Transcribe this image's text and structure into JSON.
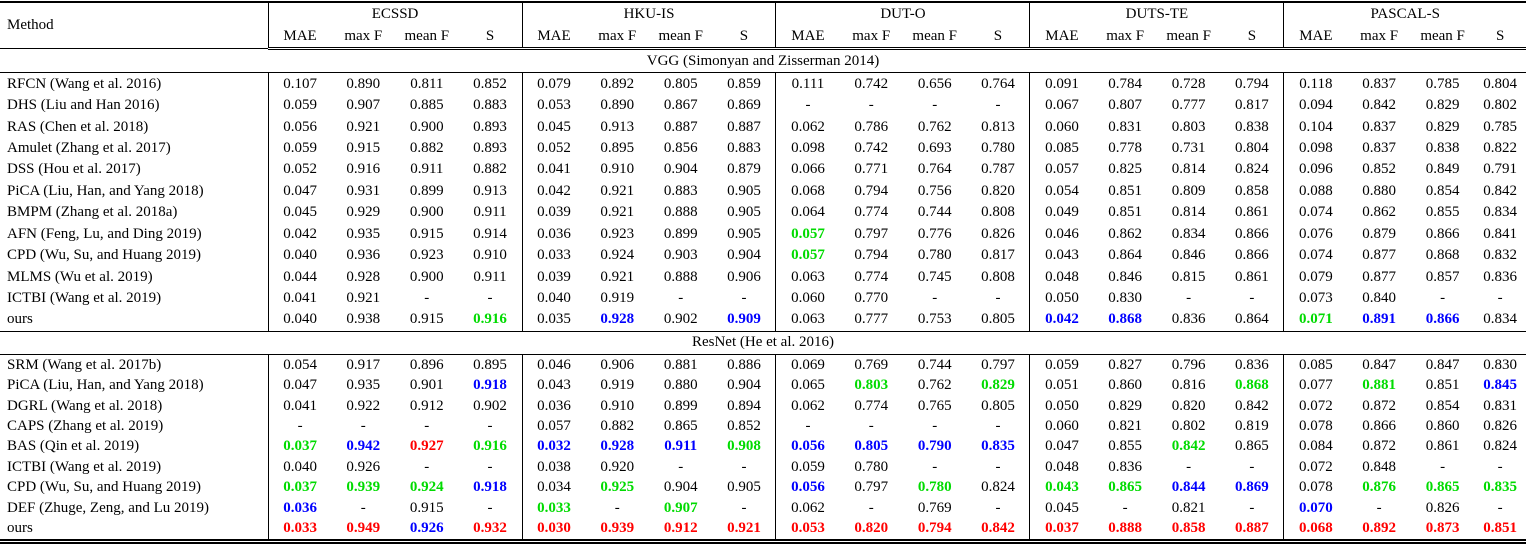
{
  "header": {
    "method_label": "Method",
    "datasets": [
      "ECSSD",
      "HKU-IS",
      "DUT-O",
      "DUTS-TE",
      "PASCAL-S"
    ],
    "metrics": [
      "MAE",
      "max F",
      "mean F",
      "S"
    ]
  },
  "color_map": {
    "r": "#ff0000",
    "g": "#00db00",
    "b": "#0000ff",
    "k": "#000000"
  },
  "sections": [
    {
      "id": "vgg",
      "title": "VGG (Simonyan and Zisserman 2014)",
      "rows": [
        {
          "method": "RFCN (Wang et al. 2016)",
          "cells": [
            "0.107",
            "0.890",
            "0.811",
            "0.852",
            "0.079",
            "0.892",
            "0.805",
            "0.859",
            "0.111",
            "0.742",
            "0.656",
            "0.764",
            "0.091",
            "0.784",
            "0.728",
            "0.794",
            "0.118",
            "0.837",
            "0.785",
            "0.804"
          ]
        },
        {
          "method": "DHS (Liu and Han 2016)",
          "cells": [
            "0.059",
            "0.907",
            "0.885",
            "0.883",
            "0.053",
            "0.890",
            "0.867",
            "0.869",
            "-",
            "-",
            "-",
            "-",
            "0.067",
            "0.807",
            "0.777",
            "0.817",
            "0.094",
            "0.842",
            "0.829",
            "0.802"
          ]
        },
        {
          "method": "RAS (Chen et al. 2018)",
          "cells": [
            "0.056",
            "0.921",
            "0.900",
            "0.893",
            "0.045",
            "0.913",
            "0.887",
            "0.887",
            "0.062",
            "0.786",
            "0.762",
            "0.813",
            "0.060",
            "0.831",
            "0.803",
            "0.838",
            "0.104",
            "0.837",
            "0.829",
            "0.785"
          ]
        },
        {
          "method": "Amulet (Zhang et al. 2017)",
          "cells": [
            "0.059",
            "0.915",
            "0.882",
            "0.893",
            "0.052",
            "0.895",
            "0.856",
            "0.883",
            "0.098",
            "0.742",
            "0.693",
            "0.780",
            "0.085",
            "0.778",
            "0.731",
            "0.804",
            "0.098",
            "0.837",
            "0.838",
            "0.822"
          ]
        },
        {
          "method": "DSS (Hou et al. 2017)",
          "cells": [
            "0.052",
            "0.916",
            "0.911",
            "0.882",
            "0.041",
            "0.910",
            "0.904",
            "0.879",
            "0.066",
            "0.771",
            "0.764",
            "0.787",
            "0.057",
            "0.825",
            "0.814",
            "0.824",
            "0.096",
            "0.852",
            "0.849",
            "0.791"
          ]
        },
        {
          "method": "PiCA (Liu, Han, and Yang 2018)",
          "cells": [
            "0.047",
            "0.931",
            "0.899",
            "0.913",
            "0.042",
            "0.921",
            "0.883",
            "0.905",
            "0.068",
            "0.794",
            "0.756",
            "0.820",
            "0.054",
            "0.851",
            "0.809",
            "0.858",
            "0.088",
            "0.880",
            "0.854",
            "0.842"
          ]
        },
        {
          "method": "BMPM (Zhang et al. 2018a)",
          "cells": [
            "0.045",
            "0.929",
            "0.900",
            "0.911",
            "0.039",
            "0.921",
            "0.888",
            "0.905",
            "0.064",
            "0.774",
            "0.744",
            "0.808",
            "0.049",
            "0.851",
            "0.814",
            "0.861",
            "0.074",
            "0.862",
            "0.855",
            "0.834"
          ]
        },
        {
          "method": "AFN (Feng, Lu, and Ding 2019)",
          "cells": [
            "0.042",
            "0.935",
            "0.915",
            "0.914",
            "0.036",
            "0.923",
            "0.899",
            "0.905",
            {
              "v": "0.057",
              "c": "g"
            },
            "0.797",
            "0.776",
            "0.826",
            "0.046",
            "0.862",
            "0.834",
            "0.866",
            "0.076",
            "0.879",
            "0.866",
            "0.841"
          ]
        },
        {
          "method": "CPD (Wu, Su, and Huang 2019)",
          "cells": [
            "0.040",
            "0.936",
            "0.923",
            "0.910",
            "0.033",
            "0.924",
            "0.903",
            "0.904",
            {
              "v": "0.057",
              "c": "g"
            },
            "0.794",
            "0.780",
            "0.817",
            "0.043",
            "0.864",
            "0.846",
            "0.866",
            "0.074",
            "0.877",
            "0.868",
            "0.832"
          ]
        },
        {
          "method": "MLMS (Wu et al. 2019)",
          "cells": [
            "0.044",
            "0.928",
            "0.900",
            "0.911",
            "0.039",
            "0.921",
            "0.888",
            "0.906",
            "0.063",
            "0.774",
            "0.745",
            "0.808",
            "0.048",
            "0.846",
            "0.815",
            "0.861",
            "0.079",
            "0.877",
            "0.857",
            "0.836"
          ]
        },
        {
          "method": "ICTBI (Wang et al. 2019)",
          "cells": [
            "0.041",
            "0.921",
            "-",
            "-",
            "0.040",
            "0.919",
            "-",
            "-",
            "0.060",
            "0.770",
            "-",
            "-",
            "0.050",
            "0.830",
            "-",
            "-",
            "0.073",
            "0.840",
            "-",
            "-"
          ]
        },
        {
          "method": "ours",
          "cells": [
            "0.040",
            "0.938",
            "0.915",
            {
              "v": "0.916",
              "c": "g"
            },
            "0.035",
            {
              "v": "0.928",
              "c": "b"
            },
            "0.902",
            {
              "v": "0.909",
              "c": "b"
            },
            "0.063",
            "0.777",
            "0.753",
            "0.805",
            {
              "v": "0.042",
              "c": "b"
            },
            {
              "v": "0.868",
              "c": "b"
            },
            "0.836",
            "0.864",
            {
              "v": "0.071",
              "c": "g"
            },
            {
              "v": "0.891",
              "c": "b"
            },
            {
              "v": "0.866",
              "c": "b"
            },
            "0.834"
          ]
        }
      ]
    },
    {
      "id": "resnet",
      "title": "ResNet (He et al. 2016)",
      "rows": [
        {
          "method": "SRM (Wang et al. 2017b)",
          "cells": [
            "0.054",
            "0.917",
            "0.896",
            "0.895",
            "0.046",
            "0.906",
            "0.881",
            "0.886",
            "0.069",
            "0.769",
            "0.744",
            "0.797",
            "0.059",
            "0.827",
            "0.796",
            "0.836",
            "0.085",
            "0.847",
            "0.847",
            "0.830"
          ]
        },
        {
          "method": "PiCA (Liu, Han, and Yang 2018)",
          "cells": [
            "0.047",
            "0.935",
            "0.901",
            {
              "v": "0.918",
              "c": "b"
            },
            "0.043",
            "0.919",
            "0.880",
            "0.904",
            "0.065",
            {
              "v": "0.803",
              "c": "g"
            },
            "0.762",
            {
              "v": "0.829",
              "c": "g"
            },
            "0.051",
            "0.860",
            "0.816",
            {
              "v": "0.868",
              "c": "g"
            },
            "0.077",
            {
              "v": "0.881",
              "c": "g"
            },
            "0.851",
            {
              "v": "0.845",
              "c": "b"
            }
          ]
        },
        {
          "method": "DGRL (Wang et al. 2018)",
          "cells": [
            "0.041",
            "0.922",
            "0.912",
            "0.902",
            "0.036",
            "0.910",
            "0.899",
            "0.894",
            "0.062",
            "0.774",
            "0.765",
            "0.805",
            "0.050",
            "0.829",
            "0.820",
            "0.842",
            "0.072",
            "0.872",
            "0.854",
            "0.831"
          ]
        },
        {
          "method": "CAPS (Zhang et al. 2019)",
          "cells": [
            "-",
            "-",
            "-",
            "-",
            "0.057",
            "0.882",
            "0.865",
            "0.852",
            "-",
            "-",
            "-",
            "-",
            "0.060",
            "0.821",
            "0.802",
            "0.819",
            "0.078",
            "0.866",
            "0.860",
            "0.826"
          ]
        },
        {
          "method": "BAS (Qin et al. 2019)",
          "cells": [
            {
              "v": "0.037",
              "c": "g"
            },
            {
              "v": "0.942",
              "c": "b"
            },
            {
              "v": "0.927",
              "c": "r"
            },
            {
              "v": "0.916",
              "c": "g"
            },
            {
              "v": "0.032",
              "c": "b"
            },
            {
              "v": "0.928",
              "c": "b"
            },
            {
              "v": "0.911",
              "c": "b"
            },
            {
              "v": "0.908",
              "c": "g"
            },
            {
              "v": "0.056",
              "c": "b"
            },
            {
              "v": "0.805",
              "c": "b"
            },
            {
              "v": "0.790",
              "c": "b"
            },
            {
              "v": "0.835",
              "c": "b"
            },
            "0.047",
            "0.855",
            {
              "v": "0.842",
              "c": "g"
            },
            "0.865",
            "0.084",
            "0.872",
            "0.861",
            "0.824"
          ]
        },
        {
          "method": "ICTBI (Wang et al. 2019)",
          "cells": [
            "0.040",
            "0.926",
            "-",
            "-",
            "0.038",
            "0.920",
            "-",
            "-",
            "0.059",
            "0.780",
            "-",
            "-",
            "0.048",
            "0.836",
            "-",
            "-",
            "0.072",
            "0.848",
            "-",
            "-"
          ]
        },
        {
          "method": "CPD (Wu, Su, and Huang 2019)",
          "cells": [
            {
              "v": "0.037",
              "c": "g"
            },
            {
              "v": "0.939",
              "c": "g"
            },
            {
              "v": "0.924",
              "c": "g"
            },
            {
              "v": "0.918",
              "c": "b"
            },
            "0.034",
            {
              "v": "0.925",
              "c": "g"
            },
            "0.904",
            "0.905",
            {
              "v": "0.056",
              "c": "b"
            },
            "0.797",
            {
              "v": "0.780",
              "c": "g"
            },
            "0.824",
            {
              "v": "0.043",
              "c": "g"
            },
            {
              "v": "0.865",
              "c": "g"
            },
            {
              "v": "0.844",
              "c": "b"
            },
            {
              "v": "0.869",
              "c": "b"
            },
            "0.078",
            {
              "v": "0.876",
              "c": "g"
            },
            {
              "v": "0.865",
              "c": "g"
            },
            {
              "v": "0.835",
              "c": "g"
            }
          ]
        },
        {
          "method": "DEF (Zhuge, Zeng, and Lu 2019)",
          "cells": [
            {
              "v": "0.036",
              "c": "b"
            },
            "-",
            "0.915",
            "-",
            {
              "v": "0.033",
              "c": "g"
            },
            "-",
            {
              "v": "0.907",
              "c": "g"
            },
            "-",
            "0.062",
            "-",
            "0.769",
            "-",
            "0.045",
            "-",
            "0.821",
            "-",
            {
              "v": "0.070",
              "c": "b"
            },
            "-",
            "0.826",
            "-"
          ]
        },
        {
          "method": "ours",
          "cells": [
            {
              "v": "0.033",
              "c": "r"
            },
            {
              "v": "0.949",
              "c": "r"
            },
            {
              "v": "0.926",
              "c": "b"
            },
            {
              "v": "0.932",
              "c": "r"
            },
            {
              "v": "0.030",
              "c": "r"
            },
            {
              "v": "0.939",
              "c": "r"
            },
            {
              "v": "0.912",
              "c": "r"
            },
            {
              "v": "0.921",
              "c": "r"
            },
            {
              "v": "0.053",
              "c": "r"
            },
            {
              "v": "0.820",
              "c": "r"
            },
            {
              "v": "0.794",
              "c": "r"
            },
            {
              "v": "0.842",
              "c": "r"
            },
            {
              "v": "0.037",
              "c": "r"
            },
            {
              "v": "0.888",
              "c": "r"
            },
            {
              "v": "0.858",
              "c": "r"
            },
            {
              "v": "0.887",
              "c": "r"
            },
            {
              "v": "0.068",
              "c": "r"
            },
            {
              "v": "0.892",
              "c": "r"
            },
            {
              "v": "0.873",
              "c": "r"
            },
            {
              "v": "0.851",
              "c": "r"
            }
          ]
        }
      ]
    }
  ]
}
